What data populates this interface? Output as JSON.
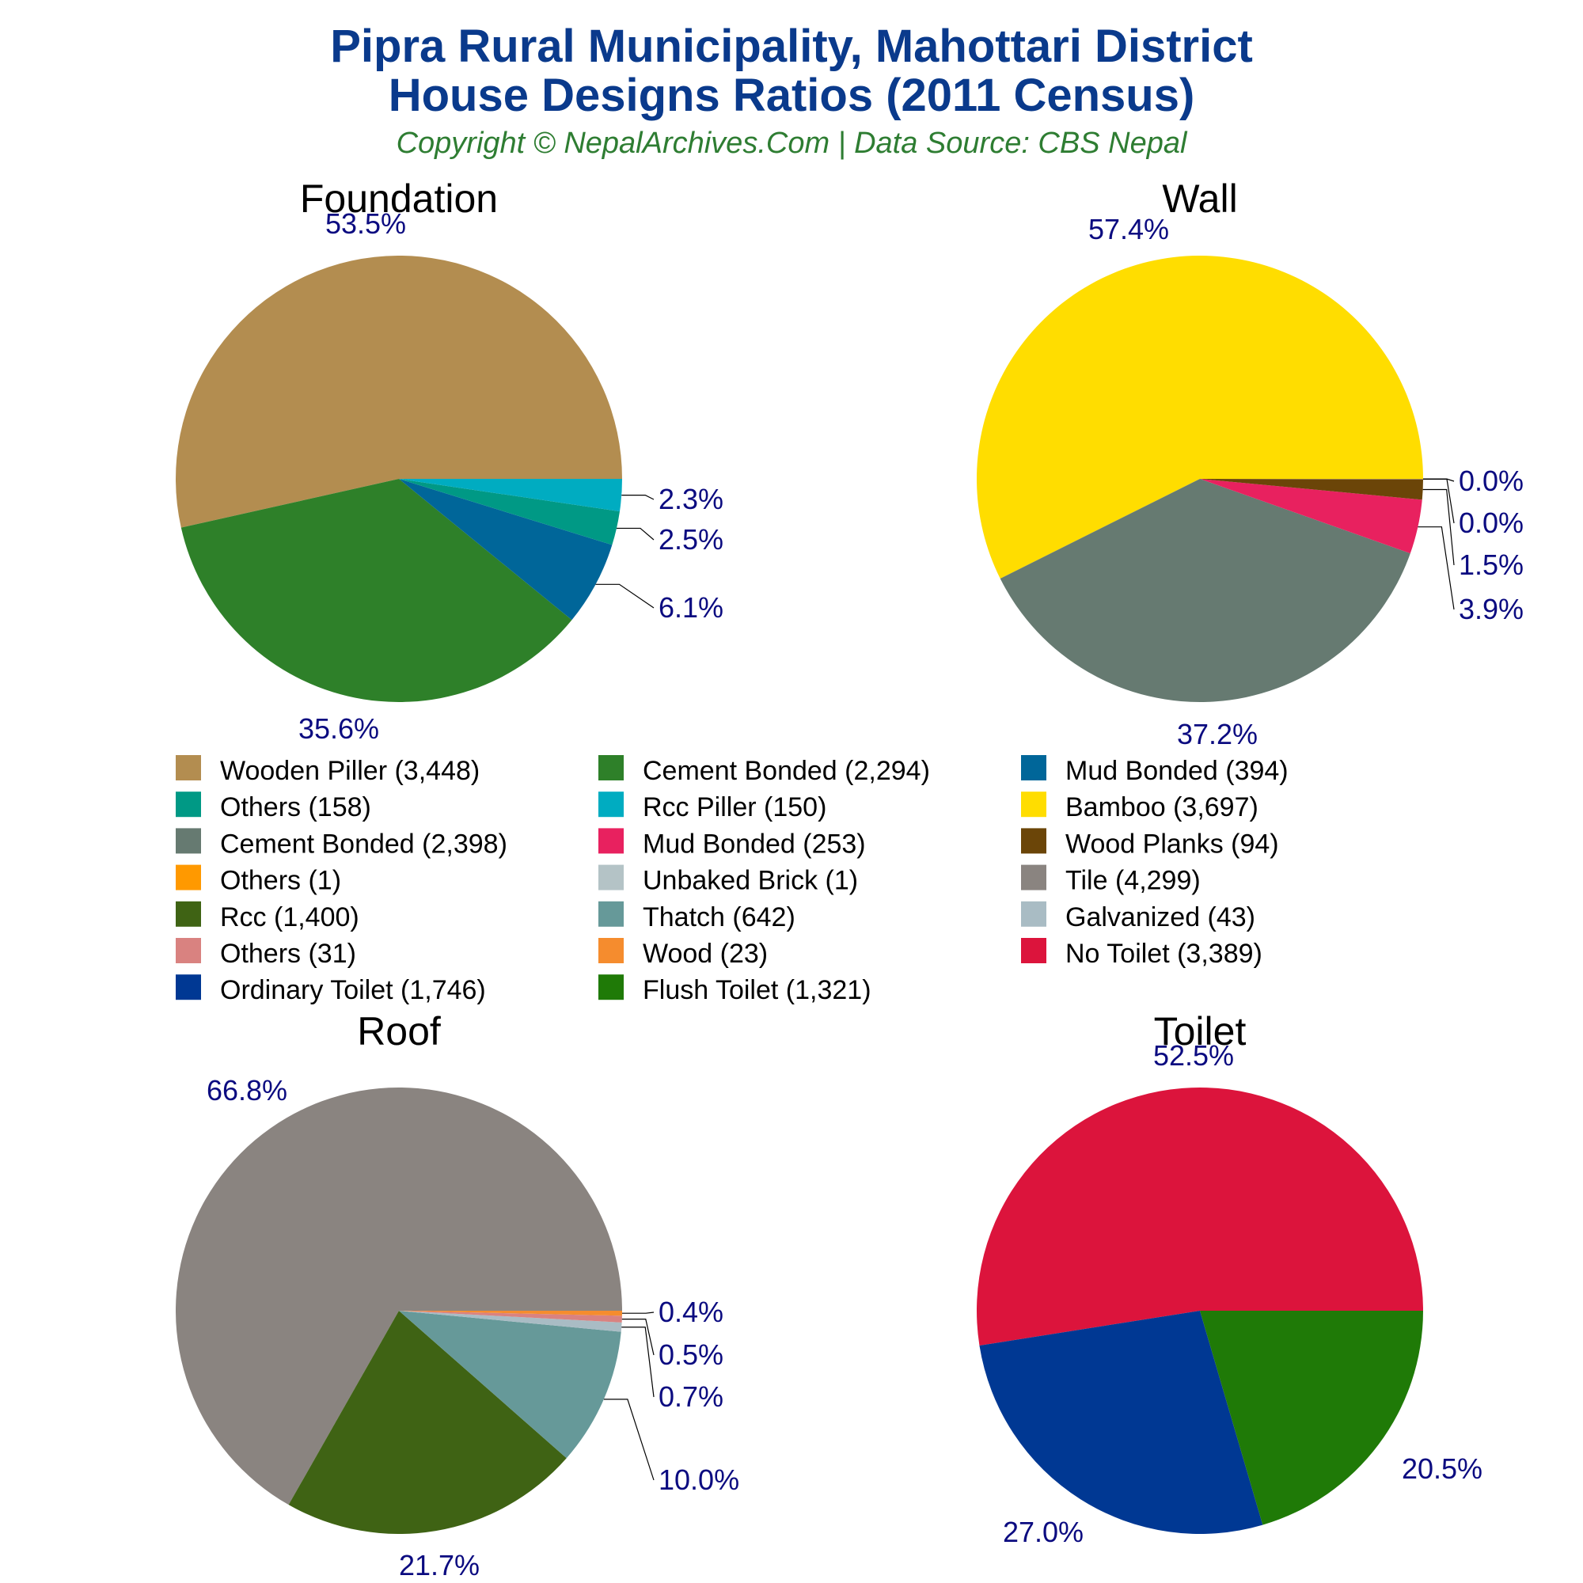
{
  "header": {
    "title_line1": "Pipra Rural Municipality, Mahottari District",
    "title_line2": "House Designs Ratios (2011 Census)",
    "subtitle": "Copyright © NepalArchives.Com | Data Source: CBS Nepal"
  },
  "colors": {
    "title": "#0a3a8c",
    "subtitle": "#2e7d32",
    "percent_labels": "#0b0b80"
  },
  "chart_data": [
    {
      "type": "pie",
      "title": "Foundation",
      "slices": [
        {
          "label": "Wooden Piller (3,448)",
          "value": 3448,
          "percent": "53.5%",
          "color": "#b38d50"
        },
        {
          "label": "Cement Bonded (2,294)",
          "value": 2294,
          "percent": "35.6%",
          "color": "#2e8029"
        },
        {
          "label": "Mud Bonded (394)",
          "value": 394,
          "percent": "6.1%",
          "color": "#006699"
        },
        {
          "label": "Others (158)",
          "value": 158,
          "percent": "2.5%",
          "color": "#009985"
        },
        {
          "label": "Rcc Piller (150)",
          "value": 150,
          "percent": "2.3%",
          "color": "#00acc1"
        }
      ]
    },
    {
      "type": "pie",
      "title": "Wall",
      "slices": [
        {
          "label": "Bamboo (3,697)",
          "value": 3697,
          "percent": "57.4%",
          "color": "#ffdd00"
        },
        {
          "label": "Cement Bonded (2,398)",
          "value": 2398,
          "percent": "37.2%",
          "color": "#667a71"
        },
        {
          "label": "Mud Bonded (253)",
          "value": 253,
          "percent": "3.9%",
          "color": "#e8215f"
        },
        {
          "label": "Wood Planks (94)",
          "value": 94,
          "percent": "1.5%",
          "color": "#6b4508"
        },
        {
          "label": "Others (1)",
          "value": 1,
          "percent": "0.0%",
          "color": "#ff9900"
        },
        {
          "label": "Unbaked Brick (1)",
          "value": 1,
          "percent": "0.0%",
          "color": "#b4c3c6"
        }
      ]
    },
    {
      "type": "pie",
      "title": "Roof",
      "slices": [
        {
          "label": "Tile (4,299)",
          "value": 4299,
          "percent": "66.8%",
          "color": "#8a8480"
        },
        {
          "label": "Rcc (1,400)",
          "value": 1400,
          "percent": "21.7%",
          "color": "#3f6314"
        },
        {
          "label": "Thatch (642)",
          "value": 642,
          "percent": "10.0%",
          "color": "#669999"
        },
        {
          "label": "Galvanized (43)",
          "value": 43,
          "percent": "0.7%",
          "color": "#a9bcc4"
        },
        {
          "label": "Others (31)",
          "value": 31,
          "percent": "0.5%",
          "color": "#d98280"
        },
        {
          "label": "Wood (23)",
          "value": 23,
          "percent": "0.4%",
          "color": "#f58c2e"
        }
      ]
    },
    {
      "type": "pie",
      "title": "Toilet",
      "slices": [
        {
          "label": "No Toilet (3,389)",
          "value": 3389,
          "percent": "52.5%",
          "color": "#dc143c"
        },
        {
          "label": "Ordinary Toilet (1,746)",
          "value": 1746,
          "percent": "27.0%",
          "color": "#003893"
        },
        {
          "label": "Flush Toilet (1,321)",
          "value": 1321,
          "percent": "20.5%",
          "color": "#1f7a07"
        }
      ]
    }
  ],
  "legend": [
    {
      "label": "Wooden Piller (3,448)",
      "color": "#b38d50"
    },
    {
      "label": "Cement Bonded (2,294)",
      "color": "#2e8029"
    },
    {
      "label": "Mud Bonded (394)",
      "color": "#006699"
    },
    {
      "label": "Others (158)",
      "color": "#009985"
    },
    {
      "label": "Rcc Piller (150)",
      "color": "#00acc1"
    },
    {
      "label": "Bamboo (3,697)",
      "color": "#ffdd00"
    },
    {
      "label": "Cement Bonded (2,398)",
      "color": "#667a71"
    },
    {
      "label": "Mud Bonded (253)",
      "color": "#e8215f"
    },
    {
      "label": "Wood Planks (94)",
      "color": "#6b4508"
    },
    {
      "label": "Others (1)",
      "color": "#ff9900"
    },
    {
      "label": "Unbaked Brick (1)",
      "color": "#b4c3c6"
    },
    {
      "label": "Tile (4,299)",
      "color": "#8a8480"
    },
    {
      "label": "Rcc (1,400)",
      "color": "#3f6314"
    },
    {
      "label": "Thatch (642)",
      "color": "#669999"
    },
    {
      "label": "Galvanized (43)",
      "color": "#a9bcc4"
    },
    {
      "label": "Others (31)",
      "color": "#d98280"
    },
    {
      "label": "Wood (23)",
      "color": "#f58c2e"
    },
    {
      "label": "No Toilet (3,389)",
      "color": "#dc143c"
    },
    {
      "label": "Ordinary Toilet (1,746)",
      "color": "#003893"
    },
    {
      "label": "Flush Toilet (1,321)",
      "color": "#1f7a07"
    }
  ]
}
